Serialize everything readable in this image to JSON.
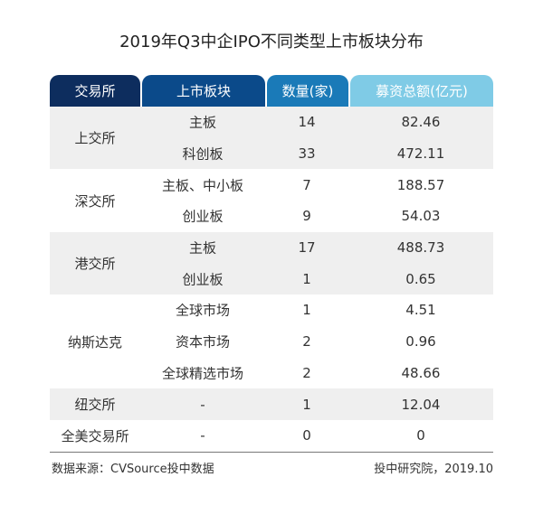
{
  "chart_data": {
    "type": "table",
    "title": "2019年Q3中企IPO不同类型上市板块分布",
    "columns": [
      "交易所",
      "上市板块",
      "数量(家)",
      "募资总额(亿元)"
    ],
    "header_colors": [
      "#0d2d5e",
      "#0b4a8a",
      "#1a7ab8",
      "#7fcbe6"
    ],
    "groups": [
      {
        "exchange": "上交所",
        "rows": [
          {
            "board": "主板",
            "count": "14",
            "amount": "82.46"
          },
          {
            "board": "科创板",
            "count": "33",
            "amount": "472.11"
          }
        ]
      },
      {
        "exchange": "深交所",
        "rows": [
          {
            "board": "主板、中小板",
            "count": "7",
            "amount": "188.57"
          },
          {
            "board": "创业板",
            "count": "9",
            "amount": "54.03"
          }
        ]
      },
      {
        "exchange": "港交所",
        "rows": [
          {
            "board": "主板",
            "count": "17",
            "amount": "488.73"
          },
          {
            "board": "创业板",
            "count": "1",
            "amount": "0.65"
          }
        ]
      },
      {
        "exchange": "纳斯达克",
        "rows": [
          {
            "board": "全球市场",
            "count": "1",
            "amount": "4.51"
          },
          {
            "board": "资本市场",
            "count": "2",
            "amount": "0.96"
          },
          {
            "board": "全球精选市场",
            "count": "2",
            "amount": "48.66"
          }
        ]
      },
      {
        "exchange": "纽交所",
        "rows": [
          {
            "board": "-",
            "count": "1",
            "amount": "12.04"
          }
        ]
      },
      {
        "exchange": "全美交易所",
        "rows": [
          {
            "board": "-",
            "count": "0",
            "amount": "0"
          }
        ]
      }
    ],
    "shade_color": "#efefef"
  },
  "footer": {
    "source": "数据来源：CVSource投中数据",
    "credit": "投中研究院，2019.10"
  }
}
